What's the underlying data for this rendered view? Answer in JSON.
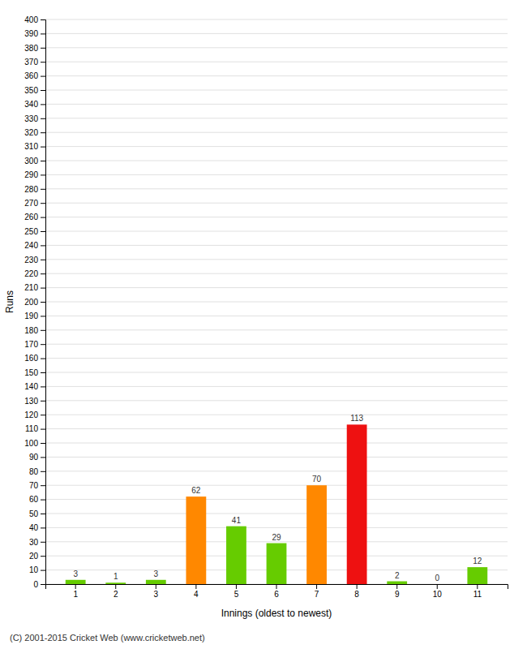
{
  "chart_data": {
    "type": "bar",
    "categories": [
      "1",
      "2",
      "3",
      "4",
      "5",
      "6",
      "7",
      "8",
      "9",
      "10",
      "11"
    ],
    "values": [
      3,
      1,
      3,
      62,
      41,
      29,
      70,
      113,
      2,
      0,
      12
    ],
    "colors": [
      "#66cc00",
      "#66cc00",
      "#66cc00",
      "#ff8800",
      "#66cc00",
      "#66cc00",
      "#ff8800",
      "#ee1111",
      "#66cc00",
      "#66cc00",
      "#66cc00"
    ],
    "x_label": "Innings (oldest to newest)",
    "y_label": "Runs",
    "ylim": [
      0,
      400
    ],
    "yticks": [
      0,
      10,
      20,
      30,
      40,
      50,
      60,
      70,
      80,
      90,
      100,
      110,
      120,
      130,
      140,
      150,
      160,
      170,
      180,
      190,
      200,
      210,
      220,
      230,
      240,
      250,
      260,
      270,
      280,
      290,
      300,
      310,
      320,
      330,
      340,
      350,
      360,
      370,
      380,
      390,
      400
    ],
    "grid": true,
    "data_labels": true,
    "annotations": [
      "(C) 2001-2015 Cricket Web (www.cricketweb.net)"
    ]
  }
}
